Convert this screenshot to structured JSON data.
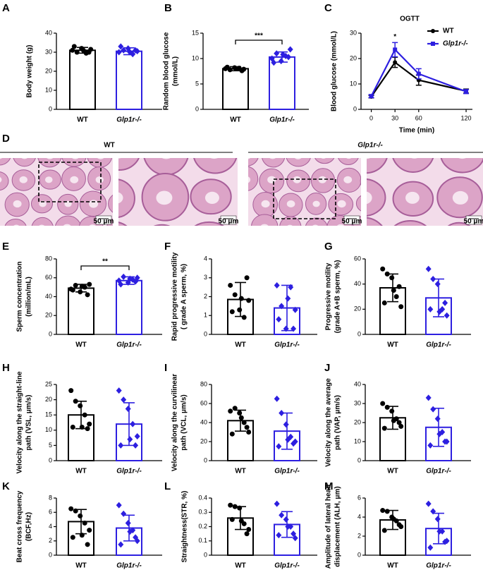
{
  "chart_data": [
    {
      "type": "bar",
      "panel": "A",
      "ylabel": [
        "Body weight (g)"
      ],
      "categories": [
        "WT",
        "Glp1r-/-"
      ],
      "colors": [
        "#000000",
        "#2d1fe0"
      ],
      "values": [
        31,
        30.5
      ],
      "errors": [
        1.5,
        1.8
      ],
      "points": [
        [
          31,
          30,
          32,
          29.5,
          31.5,
          33,
          30,
          31
        ],
        [
          30,
          31,
          32,
          29,
          30.5,
          33,
          31,
          30
        ]
      ],
      "ylim": [
        0,
        40
      ],
      "yticks": [
        0,
        10,
        20,
        30,
        40
      ]
    },
    {
      "type": "bar",
      "panel": "B",
      "ylabel": [
        "Random blood glucose",
        "(mmol/L)"
      ],
      "categories": [
        "WT",
        "Glp1r-/-"
      ],
      "colors": [
        "#000000",
        "#2d1fe0"
      ],
      "values": [
        8,
        10.3
      ],
      "errors": [
        0.4,
        1
      ],
      "points": [
        [
          8,
          7.8,
          8.2,
          8.1,
          7.9,
          8.3,
          7.6,
          8
        ],
        [
          10,
          11,
          9.5,
          10.5,
          11.8,
          9.2,
          10.3,
          10.8
        ]
      ],
      "ylim": [
        0,
        15
      ],
      "yticks": [
        0,
        5,
        10,
        15
      ],
      "annotation": "***"
    },
    {
      "type": "line",
      "panel": "C",
      "title": "OGTT",
      "xlabel": "Time (min)",
      "ylabel": [
        "Blood glucose (mmol/L)"
      ],
      "x": [
        0,
        30,
        60,
        120
      ],
      "xlim": [
        -13,
        128
      ],
      "xticks": [
        0,
        30,
        60,
        120
      ],
      "ylim": [
        0,
        30
      ],
      "yticks": [
        0,
        10,
        20,
        30
      ],
      "series": [
        {
          "name": "WT",
          "color": "#000000",
          "values": [
            5,
            18.5,
            11.5,
            7.2
          ],
          "errors": [
            0.5,
            2,
            2,
            0.8
          ]
        },
        {
          "name": "Glp1r-/-",
          "color": "#2d1fe0",
          "values": [
            5.2,
            23.5,
            14,
            7
          ],
          "errors": [
            0.6,
            2.8,
            2,
            0.8
          ]
        }
      ],
      "annotation": {
        "x": 30,
        "text": "*"
      }
    },
    {
      "type": "bar",
      "panel": "E",
      "ylabel": [
        "Sperm concentration",
        "(million/mL)"
      ],
      "categories": [
        "WT",
        "Glp1r-/-"
      ],
      "colors": [
        "#000000",
        "#2d1fe0"
      ],
      "values": [
        49,
        57
      ],
      "errors": [
        4,
        4
      ],
      "points": [
        [
          48,
          52,
          45,
          50,
          53,
          47,
          42,
          51
        ],
        [
          57,
          61,
          55,
          58,
          60,
          53,
          56,
          59
        ]
      ],
      "ylim": [
        0,
        80
      ],
      "yticks": [
        0,
        20,
        40,
        60,
        80
      ],
      "annotation": "**"
    },
    {
      "type": "bar",
      "panel": "F",
      "ylabel": [
        "Rapid progressive motility",
        "( grade A sperm, %)"
      ],
      "categories": [
        "WT",
        "Glp1r-/-"
      ],
      "colors": [
        "#000000",
        "#2d1fe0"
      ],
      "values": [
        1.85,
        1.4
      ],
      "errors": [
        0.9,
        1.2
      ],
      "points": [
        [
          2.6,
          2.1,
          1.3,
          0.9,
          1.8,
          1.2,
          3,
          1.9
        ],
        [
          2.6,
          1.5,
          0.3,
          2.5,
          1.3,
          0.8,
          0.3,
          1.9
        ]
      ],
      "ylim": [
        0,
        4
      ],
      "yticks": [
        0,
        1,
        2,
        3,
        4
      ]
    },
    {
      "type": "bar",
      "panel": "G",
      "ylabel": [
        "Progressive motility",
        "(grade A+B sperm, %)"
      ],
      "categories": [
        "WT",
        "Glp1r-/-"
      ],
      "colors": [
        "#000000",
        "#2d1fe0"
      ],
      "values": [
        37,
        29
      ],
      "errors": [
        11,
        15
      ],
      "points": [
        [
          52,
          48,
          45,
          30,
          22,
          25,
          38,
          35
        ],
        [
          52,
          44,
          40,
          20,
          15,
          20,
          25,
          18
        ]
      ],
      "ylim": [
        0,
        60
      ],
      "yticks": [
        0,
        20,
        40,
        60
      ]
    },
    {
      "type": "bar",
      "panel": "H",
      "ylabel": [
        "Velocity along the straight-line",
        "path (VSL, μm/s)"
      ],
      "categories": [
        "WT",
        "Glp1r-/-"
      ],
      "colors": [
        "#000000",
        "#2d1fe0"
      ],
      "values": [
        15,
        12
      ],
      "errors": [
        4.5,
        7
      ],
      "points": [
        [
          23,
          19.5,
          18,
          15,
          12,
          11,
          10.5,
          11
        ],
        [
          23,
          20,
          17,
          12,
          8,
          5,
          5,
          7
        ]
      ],
      "ylim": [
        0,
        25
      ],
      "yticks": [
        0,
        5,
        10,
        15,
        20,
        25
      ]
    },
    {
      "type": "bar",
      "panel": "I",
      "ylabel": [
        "Velocity along the curvilinear",
        "path (VCL, μm/s)"
      ],
      "categories": [
        "WT",
        "Glp1r-/-"
      ],
      "colors": [
        "#000000",
        "#2d1fe0"
      ],
      "values": [
        42,
        31
      ],
      "errors": [
        11,
        19
      ],
      "points": [
        [
          52,
          55,
          50,
          40,
          30,
          28,
          35,
          45
        ],
        [
          65,
          50,
          38,
          25,
          20,
          15,
          18,
          22
        ]
      ],
      "ylim": [
        0,
        80
      ],
      "yticks": [
        0,
        20,
        40,
        60,
        80
      ]
    },
    {
      "type": "bar",
      "panel": "J",
      "ylabel": [
        "Velocity along the average",
        "path (VAP, μm/s)"
      ],
      "categories": [
        "WT",
        "Glp1r-/-"
      ],
      "colors": [
        "#000000",
        "#2d1fe0"
      ],
      "values": [
        22.5,
        17.5
      ],
      "errors": [
        6,
        10
      ],
      "points": [
        [
          30,
          28,
          26,
          22,
          18,
          17,
          20,
          21
        ],
        [
          33,
          27,
          22,
          15,
          10,
          8,
          10,
          14
        ]
      ],
      "ylim": [
        0,
        40
      ],
      "yticks": [
        0,
        10,
        20,
        30,
        40
      ]
    },
    {
      "type": "bar",
      "panel": "K",
      "ylabel": [
        "Beat cross frequency",
        "(BCF,Hz)"
      ],
      "categories": [
        "WT",
        "Glp1r-/-"
      ],
      "colors": [
        "#000000",
        "#2d1fe0"
      ],
      "values": [
        4.7,
        3.8
      ],
      "errors": [
        1.7,
        1.8
      ],
      "points": [
        [
          6.5,
          6.2,
          5.5,
          4.5,
          3.5,
          2.5,
          1.5,
          2.8
        ],
        [
          7,
          5.8,
          4.5,
          3.5,
          2,
          1.5,
          2.5,
          3.3
        ]
      ],
      "ylim": [
        0,
        8
      ],
      "yticks": [
        0,
        2,
        4,
        6,
        8
      ]
    },
    {
      "type": "bar",
      "panel": "L",
      "ylabel": [
        "Straightness(STR, %)"
      ],
      "categories": [
        "WT",
        "Glp1r-/-"
      ],
      "colors": [
        "#000000",
        "#2d1fe0"
      ],
      "values": [
        0.26,
        0.215
      ],
      "errors": [
        0.08,
        0.09
      ],
      "points": [
        [
          0.35,
          0.34,
          0.33,
          0.22,
          0.18,
          0.25,
          0.15,
          0.24
        ],
        [
          0.36,
          0.28,
          0.25,
          0.2,
          0.12,
          0.14,
          0.15,
          0.2
        ]
      ],
      "ylim": [
        0,
        0.4
      ],
      "yticks": [
        0,
        0.1,
        0.2,
        0.3,
        0.4
      ]
    },
    {
      "type": "bar",
      "panel": "M",
      "ylabel": [
        "Amplitude of lateral head",
        "displacement (ALH, μm)"
      ],
      "categories": [
        "WT",
        "Glp1r-/-"
      ],
      "colors": [
        "#000000",
        "#2d1fe0"
      ],
      "values": [
        3.7,
        2.8
      ],
      "errors": [
        1,
        1.6
      ],
      "points": [
        [
          4.7,
          4.6,
          4,
          3.6,
          3,
          2.6,
          3.2,
          3.8
        ],
        [
          5.4,
          4.6,
          3.8,
          2.5,
          1.5,
          0.8,
          1.4,
          2.5
        ]
      ],
      "ylim": [
        0,
        6
      ],
      "yticks": [
        0,
        2,
        4,
        6
      ]
    }
  ],
  "histology": {
    "panel": "D",
    "groups": [
      {
        "title": "WT",
        "scale_bars": [
          "50 μm",
          "50 μm"
        ]
      },
      {
        "title": "Glp1r-/-",
        "scale_bars": [
          "50 μm",
          "50 μm"
        ]
      }
    ]
  }
}
